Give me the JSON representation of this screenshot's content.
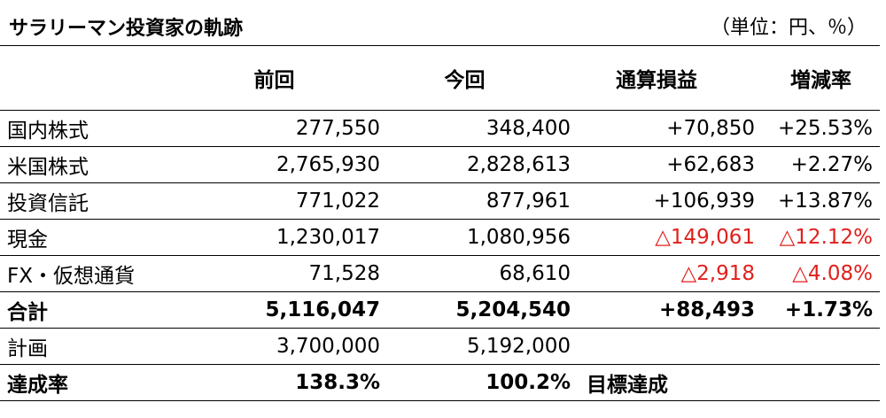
{
  "title": "サラリーマン投資家の軌跡",
  "unit_note": "（単位：円、％）",
  "columns": {
    "previous": "前回",
    "current": "今回",
    "total_gain": "通算損益",
    "change_rate": "増減率"
  },
  "rows": [
    {
      "label": "国内株式",
      "previous": "277,550",
      "current": "348,400",
      "total_gain": "+70,850",
      "change_rate": "+25.53%"
    },
    {
      "label": "米国株式",
      "previous": "2,765,930",
      "current": "2,828,613",
      "total_gain": "+62,683",
      "change_rate": "+2.27%"
    },
    {
      "label": "投資信託",
      "previous": "771,022",
      "current": "877,961",
      "total_gain": "+106,939",
      "change_rate": "+13.87%"
    },
    {
      "label": "現金",
      "previous": "1,230,017",
      "current": "1,080,956",
      "total_gain": "△149,061",
      "change_rate": "△12.12%"
    },
    {
      "label": "FX・仮想通貨",
      "previous": "71,528",
      "current": "68,610",
      "total_gain": "△2,918",
      "change_rate": "△4.08%"
    }
  ],
  "total": {
    "label": "合計",
    "previous": "5,116,047",
    "current": "5,204,540",
    "total_gain": "+88,493",
    "change_rate": "+1.73%"
  },
  "plan": {
    "label": "計画",
    "previous": "3,700,000",
    "current": "5,192,000"
  },
  "achievement": {
    "label": "達成率",
    "previous": "138.3%",
    "current": "100.2%",
    "status": "目標達成"
  },
  "colors": {
    "negative": "#e0201c",
    "text": "#000000",
    "rule": "#000000"
  }
}
